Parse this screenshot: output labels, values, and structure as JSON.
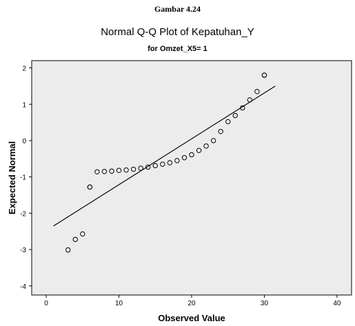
{
  "figure": {
    "caption": "Gambar 4.24"
  },
  "chart_data": {
    "type": "scatter",
    "title": "Normal Q-Q Plot of Kepatuhan_Y",
    "subtitle": "for Omzet_X5= 1",
    "xlabel": "Observed Value",
    "ylabel": "Expected Normal",
    "xlim": [
      -2,
      42
    ],
    "ylim": [
      -4.25,
      2.2
    ],
    "xticks": [
      0,
      10,
      20,
      30,
      40
    ],
    "yticks": [
      -4,
      -3,
      -2,
      -1,
      0,
      1,
      2
    ],
    "grid": false,
    "plot_background": "#ececec",
    "marker_color": "#000000",
    "line_color": "#000000",
    "points": [
      {
        "x": 3,
        "y": -3.01
      },
      {
        "x": 4,
        "y": -2.72
      },
      {
        "x": 5,
        "y": -2.57
      },
      {
        "x": 6,
        "y": -1.28
      },
      {
        "x": 6,
        "y": -1.28
      },
      {
        "x": 7,
        "y": -0.86
      },
      {
        "x": 8,
        "y": -0.85
      },
      {
        "x": 9,
        "y": -0.84
      },
      {
        "x": 10,
        "y": -0.82
      },
      {
        "x": 11,
        "y": -0.81
      },
      {
        "x": 12,
        "y": -0.79
      },
      {
        "x": 13,
        "y": -0.76
      },
      {
        "x": 14,
        "y": -0.73
      },
      {
        "x": 15,
        "y": -0.69
      },
      {
        "x": 16,
        "y": -0.65
      },
      {
        "x": 17,
        "y": -0.61
      },
      {
        "x": 18,
        "y": -0.55
      },
      {
        "x": 19,
        "y": -0.47
      },
      {
        "x": 20,
        "y": -0.39
      },
      {
        "x": 21,
        "y": -0.27
      },
      {
        "x": 22,
        "y": -0.15
      },
      {
        "x": 23,
        "y": 0.0
      },
      {
        "x": 24,
        "y": 0.25
      },
      {
        "x": 25,
        "y": 0.52
      },
      {
        "x": 26,
        "y": 0.69
      },
      {
        "x": 27,
        "y": 0.9
      },
      {
        "x": 28,
        "y": 1.12
      },
      {
        "x": 29,
        "y": 1.35
      },
      {
        "x": 30,
        "y": 1.8
      },
      {
        "x": 30,
        "y": 1.8
      }
    ],
    "reference_line": {
      "x": [
        1,
        31.5
      ],
      "y": [
        -2.35,
        1.5
      ]
    }
  }
}
